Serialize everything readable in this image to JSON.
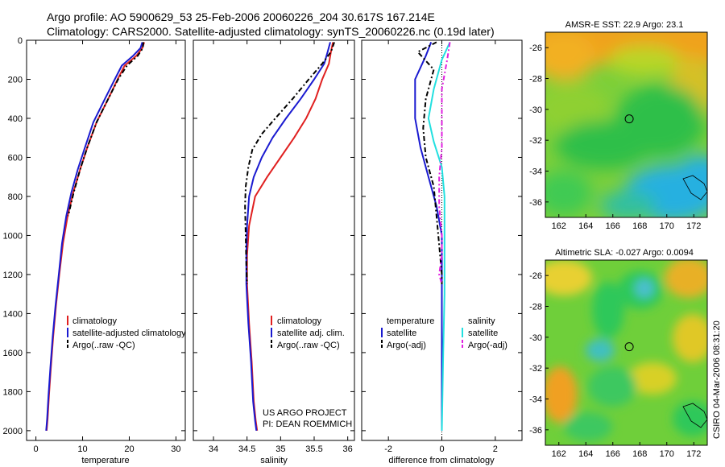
{
  "header": {
    "line1": "Argo profile: AO 5900629_53 25-Feb-2006 20060226_204 30.617S 167.214E",
    "line2": "Climatology: CARS2000. Satellite-adjusted climatology: synTS_20060226.nc (0.19d later)"
  },
  "side_label": "CSIRO 04-Mar-2006 08:31:20",
  "project": {
    "line1": "US ARGO PROJECT",
    "line2": "PI: DEAN ROEMMICH"
  },
  "colors": {
    "climatology": "#e02020",
    "satellite": "#1a1ad0",
    "argo": "#000000",
    "sat_sal": "#22e0e0",
    "argo_sal": "#e020e0"
  },
  "chart_data": [
    {
      "type": "line",
      "panel": "temperature",
      "xlabel": "temperature",
      "ylabel": "",
      "xlim": [
        -2,
        32
      ],
      "ylim": [
        2050,
        0
      ],
      "y_reversed": true,
      "xticks": [
        0,
        10,
        20,
        30
      ],
      "yticks": [
        0,
        200,
        400,
        600,
        800,
        1000,
        1200,
        1400,
        1600,
        1800,
        2000
      ],
      "legend": [
        "climatology",
        "satellite-adjusted climatology",
        "Argo(..raw -QC)"
      ],
      "series": [
        {
          "name": "climatology",
          "style": "solid",
          "color": "#e02020",
          "x": [
            23.2,
            22.8,
            21.5,
            19.0,
            17.5,
            15.5,
            13.0,
            11.0,
            9.5,
            8.0,
            6.8,
            5.8,
            5.0,
            4.3,
            3.7,
            3.2,
            2.8,
            2.5,
            2.3
          ],
          "y": [
            10,
            40,
            80,
            130,
            200,
            300,
            420,
            550,
            660,
            780,
            900,
            1040,
            1200,
            1360,
            1520,
            1680,
            1820,
            1940,
            2000
          ]
        },
        {
          "name": "satellite-adjusted climatology",
          "style": "solid",
          "color": "#1a1ad0",
          "x": [
            22.8,
            22.4,
            20.8,
            18.4,
            16.9,
            14.8,
            12.3,
            10.5,
            9.0,
            7.6,
            6.5,
            5.6,
            4.9,
            4.2,
            3.6,
            3.1,
            2.7,
            2.4,
            2.2
          ],
          "y": [
            10,
            40,
            80,
            130,
            200,
            300,
            420,
            550,
            660,
            780,
            900,
            1040,
            1200,
            1360,
            1520,
            1680,
            1820,
            1940,
            2000
          ]
        },
        {
          "name": "Argo(..raw -QC)",
          "style": "dashed",
          "color": "#000000",
          "x": [
            23.0,
            22.9,
            21.8,
            19.5,
            17.6,
            15.5,
            13.0,
            11.0,
            9.5,
            8.1,
            6.9
          ],
          "y": [
            10,
            40,
            80,
            130,
            200,
            300,
            420,
            550,
            660,
            780,
            900
          ]
        }
      ]
    },
    {
      "type": "line",
      "panel": "salinity",
      "xlabel": "salinity",
      "ylabel": "",
      "xlim": [
        33.7,
        36.1
      ],
      "ylim": [
        2050,
        0
      ],
      "y_reversed": true,
      "xticks": [
        34,
        34.5,
        35,
        35.5,
        36
      ],
      "legend": [
        "climatology",
        "satellite adj. clim.",
        "Argo(..raw -QC)"
      ],
      "series": [
        {
          "name": "climatology",
          "style": "solid",
          "color": "#e02020",
          "x": [
            35.78,
            35.75,
            35.72,
            35.62,
            35.52,
            35.38,
            35.2,
            35.0,
            34.8,
            34.62,
            34.53,
            34.5,
            34.5,
            34.53,
            34.57,
            34.6,
            34.63,
            34.65
          ],
          "y": [
            10,
            60,
            120,
            200,
            300,
            400,
            500,
            600,
            700,
            800,
            950,
            1100,
            1250,
            1450,
            1650,
            1850,
            1950,
            2000
          ]
        },
        {
          "name": "satellite adj. clim.",
          "style": "solid",
          "color": "#1a1ad0",
          "x": [
            35.74,
            35.7,
            35.65,
            35.5,
            35.3,
            35.08,
            34.88,
            34.72,
            34.6,
            34.53,
            34.5,
            34.49,
            34.49,
            34.52,
            34.56,
            34.59,
            34.62,
            34.64
          ],
          "y": [
            10,
            60,
            120,
            200,
            300,
            400,
            500,
            600,
            700,
            800,
            950,
            1100,
            1250,
            1450,
            1650,
            1850,
            1950,
            2000
          ]
        },
        {
          "name": "Argo(..raw -QC)",
          "style": "dashed",
          "color": "#000000",
          "x": [
            35.8,
            35.75,
            35.62,
            35.42,
            35.18,
            34.92,
            34.72,
            34.58,
            34.52,
            34.48,
            34.47,
            34.48,
            34.49,
            34.5
          ],
          "y": [
            10,
            60,
            120,
            200,
            300,
            400,
            480,
            560,
            650,
            750,
            850,
            1000,
            1150,
            1250
          ]
        }
      ]
    },
    {
      "type": "line",
      "panel": "difference",
      "xlabel": "difference from climatology",
      "ylabel": "",
      "xlim": [
        -3,
        3
      ],
      "ylim": [
        2050,
        0
      ],
      "y_reversed": true,
      "xticks": [
        -2,
        0,
        2
      ],
      "legend": [
        "temperature",
        "satellite",
        "Argo(-adj)",
        "salinity",
        "satellite",
        "Argo(-adj)"
      ],
      "series": [
        {
          "name": "temperature satellite",
          "style": "solid",
          "color": "#1a1ad0",
          "x": [
            -0.4,
            -0.6,
            -1.0,
            -1.0,
            -0.8,
            -0.5,
            -0.2,
            0.0,
            0.0,
            0.0,
            0.0
          ],
          "y": [
            10,
            80,
            200,
            400,
            550,
            700,
            850,
            1000,
            1200,
            1600,
            2000
          ]
        },
        {
          "name": "temperature Argo(-adj)",
          "style": "dashed",
          "color": "#000000",
          "x": [
            -0.2,
            -0.9,
            -0.3,
            -0.6,
            -0.7,
            -0.6,
            -0.3,
            -0.2,
            -0.1,
            0.0,
            0.0
          ],
          "y": [
            10,
            60,
            150,
            300,
            450,
            600,
            750,
            900,
            1050,
            1200,
            1250
          ]
        },
        {
          "name": "salinity satellite",
          "style": "solid",
          "color": "#22e0e0",
          "x": [
            0.3,
            0.0,
            -0.3,
            -0.5,
            -0.3,
            0.0,
            0.1,
            0.1,
            0.1,
            0.05,
            0.0
          ],
          "y": [
            10,
            100,
            250,
            400,
            520,
            650,
            800,
            1000,
            1300,
            1600,
            2000
          ]
        },
        {
          "name": "salinity Argo(-adj)",
          "style": "dashed",
          "color": "#e020e0",
          "x": [
            0.3,
            0.2,
            0.0,
            0.0,
            0.0,
            -0.1,
            -0.1,
            0.0,
            0.0,
            -0.1,
            0.0
          ],
          "y": [
            10,
            100,
            250,
            400,
            550,
            700,
            850,
            1000,
            1100,
            1200,
            1250
          ]
        }
      ]
    }
  ],
  "maps": [
    {
      "title": "AMSR-E SST: 22.9 Argo: 23.1",
      "xticks": [
        162,
        164,
        166,
        168,
        170,
        172
      ],
      "yticks": [
        -26,
        -28,
        -30,
        -32,
        -34,
        -36
      ],
      "xlim": [
        161,
        173
      ],
      "ylim": [
        -25,
        -37
      ],
      "profile_location": {
        "lon": 167.214,
        "lat": -30.617
      }
    },
    {
      "title": "Altimetric SLA: -0.027 Argo: 0.0094",
      "xticks": [
        162,
        164,
        166,
        168,
        170,
        172
      ],
      "yticks": [
        -26,
        -28,
        -30,
        -32,
        -34,
        -36
      ],
      "xlim": [
        161,
        173
      ],
      "ylim": [
        -25,
        -37
      ],
      "profile_location": {
        "lon": 167.214,
        "lat": -30.617
      }
    }
  ]
}
